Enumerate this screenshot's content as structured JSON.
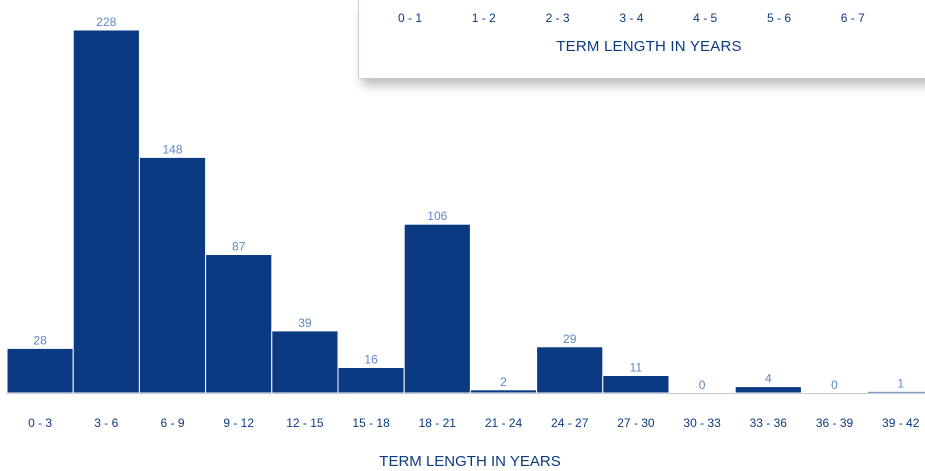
{
  "chart_data": [
    {
      "type": "bar",
      "role": "main",
      "categories": [
        "0 - 3",
        "3 - 6",
        "6 - 9",
        "9 - 12",
        "12 - 15",
        "15 - 18",
        "18 - 21",
        "21 - 24",
        "24 - 27",
        "27 - 30",
        "30 - 33",
        "33 - 36",
        "36 - 39",
        "39 - 42"
      ],
      "values": [
        28,
        228,
        148,
        87,
        39,
        16,
        106,
        2,
        29,
        11,
        0,
        4,
        0,
        1
      ],
      "xlabel": "TERM LENGTH IN YEARS",
      "ylim": [
        0,
        228
      ],
      "grid": false,
      "color": "#0b3a82",
      "label_color": "#5f86c6"
    },
    {
      "type": "bar",
      "role": "inset",
      "categories": [
        "0 - 1",
        "1 - 2",
        "2 - 3",
        "3 - 4",
        "4 - 5",
        "5 - 6",
        "6 - 7"
      ],
      "xlabel": "TERM LENGTH IN YEARS"
    }
  ]
}
